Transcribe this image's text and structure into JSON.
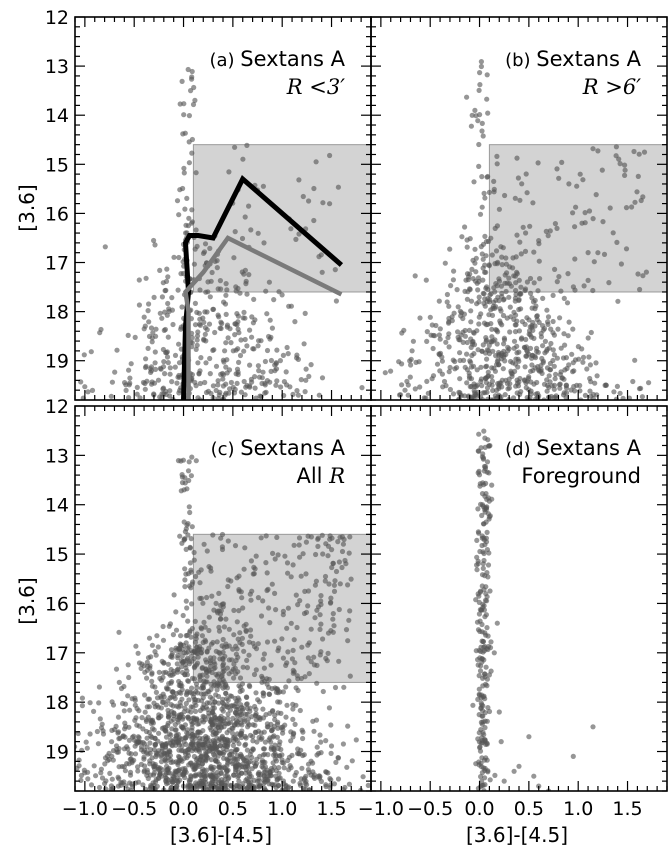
{
  "figure": {
    "xlabel": "[3.6]-[4.5]",
    "ylabel": "[3.6]"
  },
  "chart_data": [
    {
      "type": "scatter",
      "panel": "(a)",
      "title": "Sextans A",
      "subtitle": "R <3′",
      "xlim": [
        -1.1,
        1.9
      ],
      "ylim": [
        19.8,
        12
      ],
      "x_ticks": [
        "−1.0",
        "−0.5",
        "0.0",
        "0.5",
        "1.0",
        "1.5"
      ],
      "y_ticks": [
        "12",
        "13",
        "14",
        "15",
        "16",
        "17",
        "18",
        "19"
      ],
      "x_tick_values": [
        -1.0,
        -0.5,
        0.0,
        0.5,
        1.0,
        1.5
      ],
      "y_tick_values": [
        12,
        13,
        14,
        15,
        16,
        17,
        18,
        19
      ],
      "tick_labels_x_visible": false,
      "tick_labels_y_visible": true,
      "shaded_region": {
        "x": [
          0.1,
          1.9
        ],
        "y": [
          14.6,
          17.6
        ]
      },
      "scatter": {
        "n_points": 520,
        "description_density": "red-giant-branch plume centred near x=0.1 below y=17.5, vertical sequence near x=0 up to y=13"
      },
      "series": [
        {
          "color": "#000000",
          "x": [
            0.0,
            0.02,
            0.05,
            0.02,
            0.06,
            0.15,
            0.3,
            0.6,
            1.6
          ],
          "y": [
            19.8,
            18.3,
            17.6,
            16.6,
            16.45,
            16.45,
            16.5,
            15.3,
            17.05
          ]
        },
        {
          "color": "#7a7a7a",
          "x": [
            0.05,
            0.05,
            0.02,
            0.2,
            0.45,
            1.6
          ],
          "y": [
            19.8,
            18.0,
            17.6,
            17.2,
            16.5,
            17.65
          ]
        }
      ]
    },
    {
      "type": "scatter",
      "panel": "(b)",
      "title": "Sextans A",
      "subtitle": "R >6′",
      "xlim": [
        -1.1,
        1.9
      ],
      "ylim": [
        19.8,
        12
      ],
      "x_ticks": [
        "−1.0",
        "−0.5",
        "0.0",
        "0.5",
        "1.0",
        "1.5"
      ],
      "x_tick_values": [
        -1.0,
        -0.5,
        0.0,
        0.5,
        1.0,
        1.5
      ],
      "y_tick_values": [
        12,
        13,
        14,
        15,
        16,
        17,
        18,
        19
      ],
      "tick_labels_x_visible": false,
      "tick_labels_y_visible": false,
      "shaded_region": {
        "x": [
          0.1,
          1.9
        ],
        "y": [
          14.6,
          17.6
        ]
      },
      "scatter": {
        "n_points": 780
      }
    },
    {
      "type": "scatter",
      "panel": "(c)",
      "title": "Sextans A",
      "subtitle": "All R",
      "xlim": [
        -1.1,
        1.9
      ],
      "ylim": [
        19.8,
        12
      ],
      "x_ticks": [
        "−1.0",
        "−0.5",
        "0.0",
        "0.5",
        "1.0",
        "1.5"
      ],
      "y_ticks": [
        "12",
        "13",
        "14",
        "15",
        "16",
        "17",
        "18",
        "19"
      ],
      "x_tick_values": [
        -1.0,
        -0.5,
        0.0,
        0.5,
        1.0,
        1.5
      ],
      "y_tick_values": [
        12,
        13,
        14,
        15,
        16,
        17,
        18,
        19
      ],
      "tick_labels_x_visible": true,
      "tick_labels_y_visible": true,
      "shaded_region": {
        "x": [
          0.1,
          1.9
        ],
        "y": [
          14.6,
          17.6
        ]
      },
      "scatter": {
        "n_points": 1900
      }
    },
    {
      "type": "scatter",
      "panel": "(d)",
      "title": "Sextans A",
      "subtitle": "Foreground",
      "xlim": [
        -1.1,
        1.9
      ],
      "ylim": [
        19.8,
        12
      ],
      "x_ticks": [
        "−1.0",
        "−0.5",
        "0.0",
        "0.5",
        "1.0",
        "1.5"
      ],
      "x_tick_values": [
        -1.0,
        -0.5,
        0.0,
        0.5,
        1.0,
        1.5
      ],
      "y_tick_values": [
        12,
        13,
        14,
        15,
        16,
        17,
        18,
        19
      ],
      "tick_labels_x_visible": true,
      "tick_labels_y_visible": false,
      "shaded_region": null,
      "scatter": {
        "n_points": 230
      }
    }
  ],
  "colors": {
    "points": "#555555",
    "shade": "#d3d3d3",
    "shade_edge": "#9a9a9a"
  }
}
